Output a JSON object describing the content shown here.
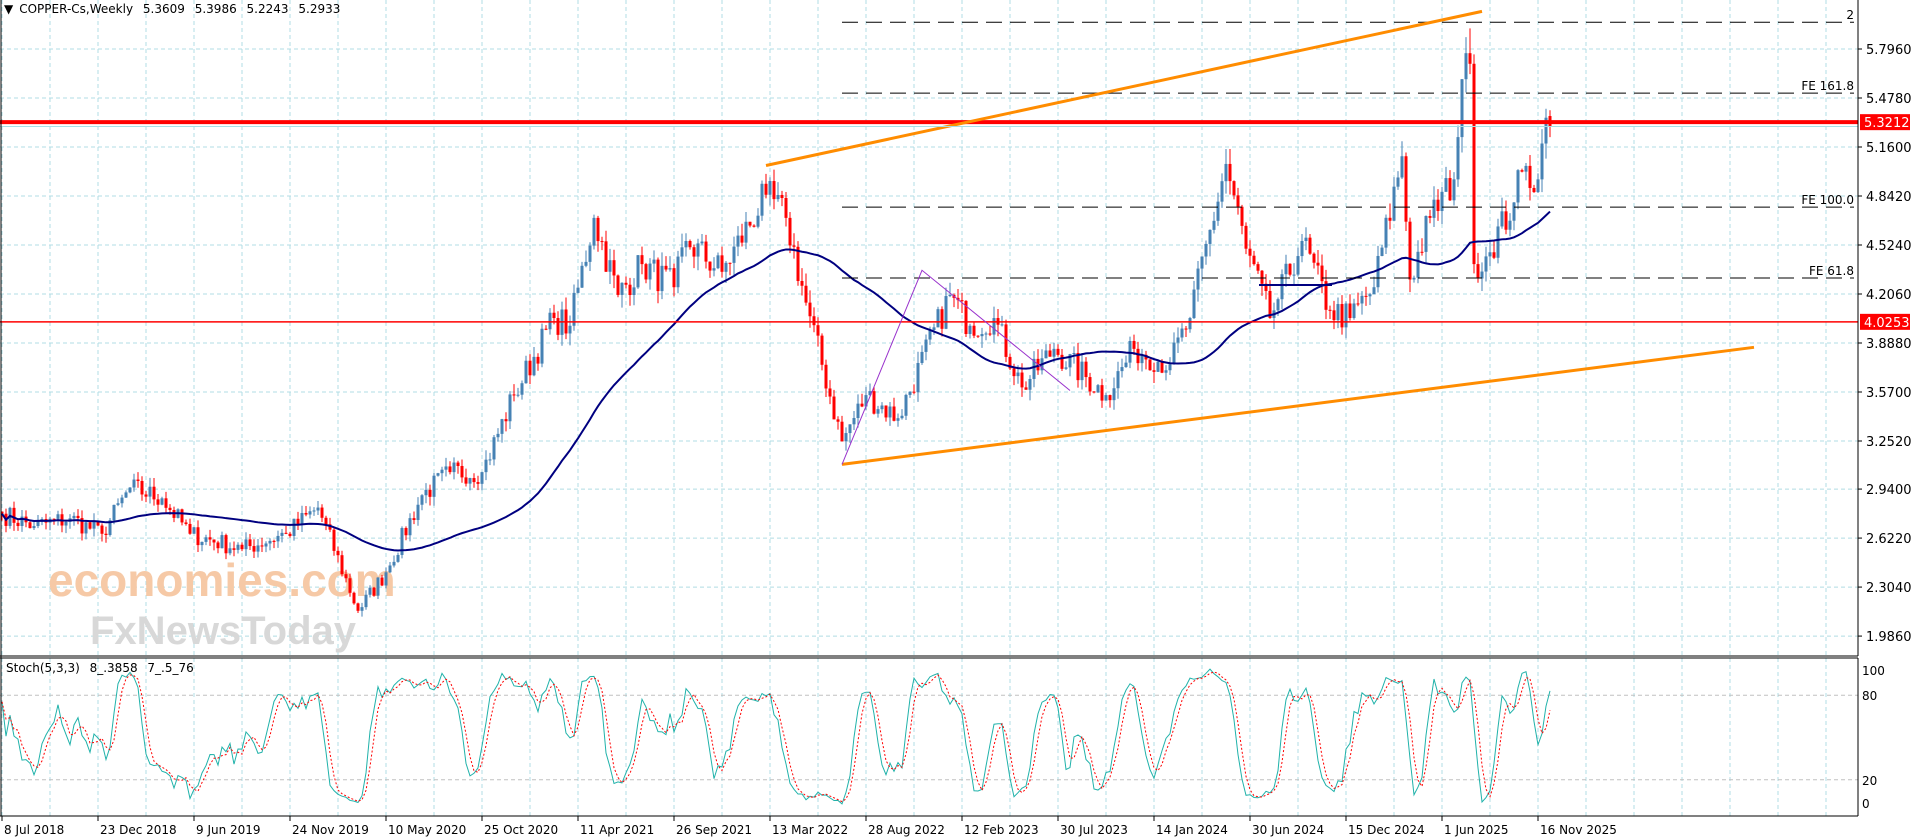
{
  "header": {
    "symbol": "COPPER-Cs,Weekly",
    "open": "5.3609",
    "high": "5.3986",
    "low": "5.2243",
    "close": "5.2933"
  },
  "stoch": {
    "label": "Stoch(5,3,3)",
    "k_value": "8_.3858",
    "d_value": "7_.5_76"
  },
  "watermark": {
    "brand1": "economies.com",
    "brand2": "FxNewsToday"
  },
  "colors": {
    "bull": "#4682b4",
    "bear": "#ff0000",
    "ma": "#000080",
    "channel": "#ff8c00",
    "triangle": "#9932cc",
    "stoch_k": "#20b2aa",
    "stoch_d": "#ff0000",
    "grid": "#b0dce4"
  },
  "chart_data": {
    "type": "candlestick",
    "title": "COPPER-Cs,Weekly",
    "start_date": "2018-07-08",
    "ylim": [
      1.88,
      6.0
    ],
    "price_ticks": [
      "5.7960",
      "5.4780",
      "5.1600",
      "4.8420",
      "4.5240",
      "4.2060",
      "3.8880",
      "3.5700",
      "3.2520",
      "2.9400",
      "2.6220",
      "2.3040",
      "1.9860"
    ],
    "date_ticks": [
      "8 Jul 2018",
      "23 Dec 2018",
      "9 Jun 2019",
      "24 Nov 2019",
      "10 May 2020",
      "25 Oct 2020",
      "11 Apr 2021",
      "26 Sep 2021",
      "13 Mar 2022",
      "28 Aug 2022",
      "12 Feb 2023",
      "30 Jul 2023",
      "14 Jan 2024",
      "30 Jun 2024",
      "15 Dec 2024",
      "1 Jun 2025",
      "16 Nov 2025"
    ],
    "close_anchors": [
      [
        "2018-07-08",
        2.78
      ],
      [
        "2018-09-01",
        2.7
      ],
      [
        "2018-11-01",
        2.75
      ],
      [
        "2019-01-01",
        2.65
      ],
      [
        "2019-02-20",
        2.95
      ],
      [
        "2019-04-15",
        2.88
      ],
      [
        "2019-06-01",
        2.65
      ],
      [
        "2019-09-01",
        2.55
      ],
      [
        "2019-11-15",
        2.65
      ],
      [
        "2020-01-15",
        2.82
      ],
      [
        "2020-03-22",
        2.15
      ],
      [
        "2020-05-10",
        2.4
      ],
      [
        "2020-07-15",
        2.9
      ],
      [
        "2020-09-01",
        3.05
      ],
      [
        "2020-10-25",
        3.05
      ],
      [
        "2020-12-20",
        3.55
      ],
      [
        "2021-02-25",
        4.05
      ],
      [
        "2021-03-30",
        4.0
      ],
      [
        "2021-05-10",
        4.7
      ],
      [
        "2021-06-20",
        4.2
      ],
      [
        "2021-08-01",
        4.4
      ],
      [
        "2021-09-26",
        4.25
      ],
      [
        "2021-10-20",
        4.55
      ],
      [
        "2021-12-20",
        4.35
      ],
      [
        "2022-03-06",
        4.85
      ],
      [
        "2022-04-10",
        4.7
      ],
      [
        "2022-05-15",
        4.15
      ],
      [
        "2022-07-15",
        3.25
      ],
      [
        "2022-08-28",
        3.55
      ],
      [
        "2022-10-20",
        3.4
      ],
      [
        "2023-01-20",
        4.2
      ],
      [
        "2023-03-01",
        4.0
      ],
      [
        "2023-04-10",
        4.05
      ],
      [
        "2023-05-25",
        3.6
      ],
      [
        "2023-07-20",
        3.85
      ],
      [
        "2023-10-20",
        3.55
      ],
      [
        "2023-12-10",
        3.85
      ],
      [
        "2024-02-10",
        3.75
      ],
      [
        "2024-03-20",
        4.05
      ],
      [
        "2024-05-20",
        5.05
      ],
      [
        "2024-06-20",
        4.5
      ],
      [
        "2024-08-05",
        4.05
      ],
      [
        "2024-09-30",
        4.55
      ],
      [
        "2024-11-20",
        4.1
      ],
      [
        "2024-12-20",
        4.05
      ],
      [
        "2025-02-01",
        4.25
      ],
      [
        "2025-03-25",
        5.1
      ],
      [
        "2025-04-08",
        4.3
      ],
      [
        "2025-05-10",
        4.7
      ],
      [
        "2025-06-20",
        4.95
      ],
      [
        "2025-07-06",
        5.6
      ],
      [
        "2025-07-20",
        5.7
      ],
      [
        "2025-07-27",
        4.4
      ],
      [
        "2025-08-20",
        4.45
      ],
      [
        "2025-10-05",
        4.8
      ],
      [
        "2025-10-20",
        5.0
      ],
      [
        "2025-11-16",
        4.95
      ],
      [
        "2025-11-30",
        5.35
      ]
    ],
    "last_candle": {
      "date": "2025-12-07",
      "open": 5.3609,
      "high": 5.3986,
      "low": 5.2243,
      "close": 5.2933
    },
    "moving_average_period": 50,
    "levels": [
      {
        "label": "5.3212",
        "price": 5.3212,
        "color": "#ff0000",
        "style": "thick"
      },
      {
        "label": "4.0253",
        "price": 4.0253,
        "color": "#ff0000",
        "style": "thin"
      }
    ],
    "fibo_expansion": [
      {
        "label": "2",
        "price": 5.97
      },
      {
        "label": "FE 161.8",
        "price": 5.51
      },
      {
        "label": "FE 100.0",
        "price": 4.77
      },
      {
        "label": "FE 61.8",
        "price": 4.31
      }
    ],
    "channel": {
      "upper": [
        [
          "2022-03-06",
          5.04
        ],
        [
          "2025-08-10",
          6.04
        ]
      ],
      "lower": [
        [
          "2022-07-15",
          3.1
        ],
        [
          "2026-12-01",
          3.86
        ]
      ]
    },
    "triangle": [
      [
        "2022-07-15",
        3.1
      ],
      [
        "2022-12-01",
        4.36
      ],
      [
        "2023-08-20",
        3.58
      ]
    ],
    "stoch_params": [
      5,
      3,
      3
    ],
    "stoch_ticks": [
      "100",
      "80",
      "20",
      "0"
    ]
  }
}
